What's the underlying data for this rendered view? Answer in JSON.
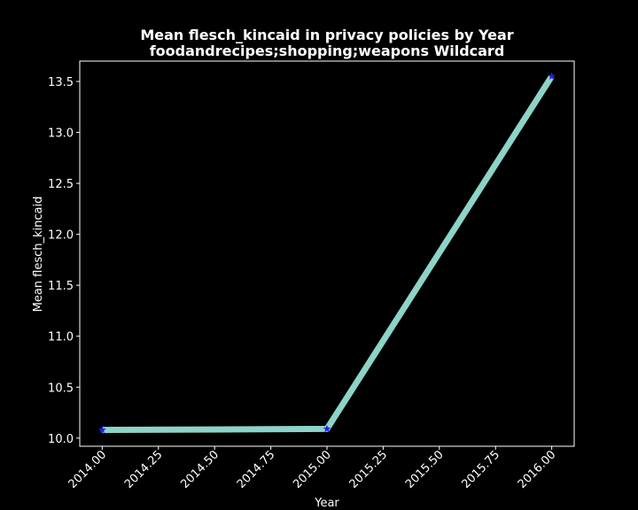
{
  "chart_data": {
    "type": "line",
    "title_line1": "Mean flesch_kincaid in privacy policies by Year",
    "title_line2": "foodandrecipes;shopping;weapons Wildcard",
    "xlabel": "Year",
    "ylabel": "Mean flesch_kincaid",
    "x": [
      2014,
      2015,
      2016
    ],
    "series": [
      {
        "values": [
          10.08,
          10.09,
          13.55
        ]
      }
    ],
    "xlim": [
      2013.9,
      2016.1
    ],
    "ylim": [
      9.92,
      13.7
    ],
    "xticks": [
      2014.0,
      2014.25,
      2014.5,
      2014.75,
      2015.0,
      2015.25,
      2015.5,
      2015.75,
      2016.0
    ],
    "xtick_labels": [
      "2014.00",
      "2014.25",
      "2014.50",
      "2014.75",
      "2015.00",
      "2015.25",
      "2015.50",
      "2015.75",
      "2016.00"
    ],
    "yticks": [
      10.0,
      10.5,
      11.0,
      11.5,
      12.0,
      12.5,
      13.0,
      13.5
    ],
    "ytick_labels": [
      "10.0",
      "10.5",
      "11.0",
      "11.5",
      "12.0",
      "12.5",
      "13.0",
      "13.5"
    ],
    "grid": false,
    "colors": {
      "background": "#000000",
      "line": "#8dd3c7",
      "marker": "#1f1fff",
      "axes": "#ffffff",
      "text": "#ffffff"
    },
    "marker": "star"
  }
}
